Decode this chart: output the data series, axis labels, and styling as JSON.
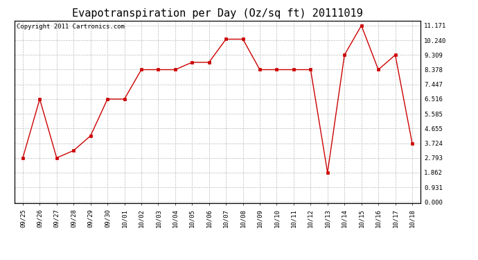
{
  "title": "Evapotranspiration per Day (Oz/sq ft) 20111019",
  "copyright": "Copyright 2011 Cartronics.com",
  "x_labels": [
    "09/25",
    "09/26",
    "09/27",
    "09/28",
    "09/29",
    "09/30",
    "10/01",
    "10/02",
    "10/03",
    "10/04",
    "10/05",
    "10/06",
    "10/07",
    "10/08",
    "10/09",
    "10/10",
    "10/11",
    "10/12",
    "10/13",
    "10/14",
    "10/15",
    "10/16",
    "10/17",
    "10/18"
  ],
  "y_values": [
    2.793,
    6.516,
    2.793,
    3.259,
    4.19,
    6.516,
    6.516,
    8.378,
    8.378,
    8.378,
    8.843,
    8.843,
    10.309,
    10.309,
    8.378,
    8.378,
    8.378,
    8.378,
    1.862,
    9.309,
    11.171,
    8.378,
    9.309,
    3.724
  ],
  "y_ticks": [
    0.0,
    0.931,
    1.862,
    2.793,
    3.724,
    4.655,
    5.585,
    6.516,
    7.447,
    8.378,
    9.309,
    10.24,
    11.171
  ],
  "line_color": "#cc0000",
  "marker_color": "#cc0000",
  "background_color": "#ffffff",
  "grid_color": "#bbbbbb",
  "title_fontsize": 11,
  "copyright_fontsize": 6.5,
  "tick_fontsize": 6.5,
  "ylim": [
    0.0,
    11.171
  ],
  "fig_width": 6.9,
  "fig_height": 3.75
}
